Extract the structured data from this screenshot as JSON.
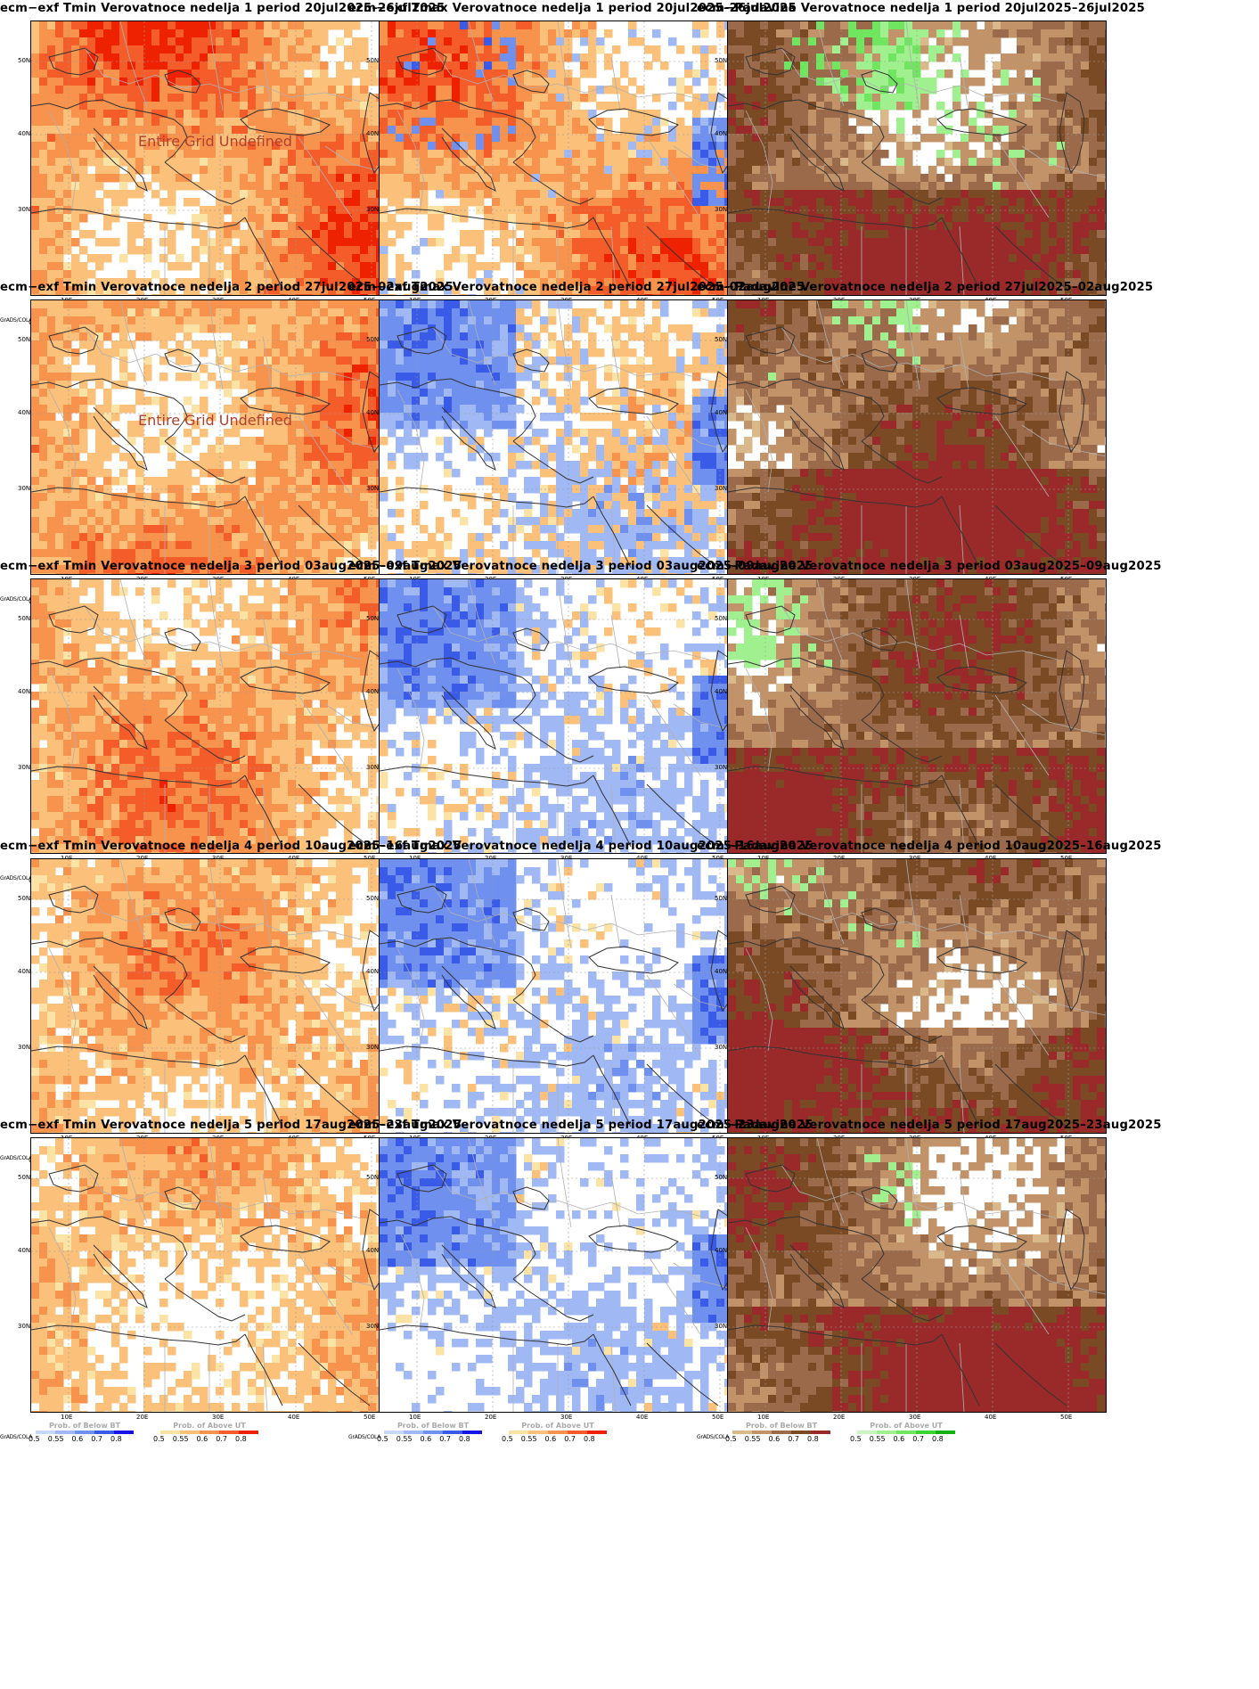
{
  "colorbars": {
    "tmin_below": {
      "title": "Prob. of Below BT",
      "labels": [
        "0.5",
        "0.55",
        "0.6",
        "0.7",
        "0.8"
      ],
      "colors": [
        "#c8d8f8",
        "#a0b8f4",
        "#6f90ee",
        "#3a5ae8",
        "#1414e6"
      ]
    },
    "tmin_above": {
      "title": "Prob. of Above UT",
      "labels": [
        "0.5",
        "0.55",
        "0.6",
        "0.7",
        "0.8"
      ],
      "colors": [
        "#fbe3a6",
        "#fbc07a",
        "#f8934e",
        "#f45c2a",
        "#ee2200"
      ]
    },
    "prec_below": {
      "title": "Prob. of Below BT",
      "labels": [
        "0.5",
        "0.55",
        "0.6",
        "0.7",
        "0.8"
      ],
      "colors": [
        "#d9b88a",
        "#c29368",
        "#9a6a4a",
        "#7a4a24",
        "#9a2a2a"
      ]
    },
    "prec_above": {
      "title": "Prob. of Above UT",
      "labels": [
        "0.5",
        "0.55",
        "0.6",
        "0.7",
        "0.8"
      ],
      "colors": [
        "#c8f8c0",
        "#a0f090",
        "#70e660",
        "#3cd42e",
        "#10b010"
      ]
    }
  },
  "grads_label": "GrADS/COLA",
  "ylabels": [
    "50N",
    "40N",
    "30N"
  ],
  "xlabels": [
    "10E",
    "20E",
    "30E",
    "40E",
    "50E"
  ],
  "rows": [
    {
      "period": "20jul2025–26jul2025",
      "week": "1"
    },
    {
      "period": "27jul2025–02aug2025",
      "week": "2"
    },
    {
      "period": "03aug2025–09aug2025",
      "week": "3"
    },
    {
      "period": "10aug2025–16aug2025",
      "week": "4"
    },
    {
      "period": "17aug2025–23aug2025",
      "week": "5"
    }
  ],
  "panels": [
    {
      "title": "ecm−exf Tmin Verovatnoce nedelja 1 period 20jul2025–26jul2025",
      "var": "tmin",
      "levels": {
        "hot": 0.85,
        "cold": 0.0
      },
      "watermark": "Entire Grid Undefined"
    },
    {
      "title": "ecm−exf Tmax Verovatnoce nedelja 1 period 20jul2025–26jul2025",
      "var": "tmax",
      "levels": {
        "hot": 0.75,
        "cold": 0.25
      }
    },
    {
      "title": "ecm−Padavine Verovatnoce nedelja 1 period 20jul2025–26jul2025",
      "var": "prec",
      "levels": {
        "dry": 0.8,
        "wet": 0.2
      }
    },
    {
      "title": "ecm−exf Tmin Verovatnoce nedelja 2 period 27jul2025–02aug2025",
      "var": "tmin",
      "levels": {
        "hot": 0.75,
        "cold": 0.0
      },
      "watermark": "Entire Grid Undefined"
    },
    {
      "title": "ecm−exf Tmax Verovatnoce nedelja 2 period 27jul2025–02aug2025",
      "var": "tmax",
      "levels": {
        "hot": 0.3,
        "cold": 0.3
      }
    },
    {
      "title": "ecm−Padavine Verovatnoce nedelja 2 period 27jul2025–02aug2025",
      "var": "prec",
      "levels": {
        "dry": 0.85,
        "wet": 0.04
      }
    },
    {
      "title": "ecm−exf Tmin Verovatnoce nedelja 3 period 03aug2025–09aug2025",
      "var": "tmin",
      "levels": {
        "hot": 0.65,
        "cold": 0.02
      }
    },
    {
      "title": "ecm−exf Tmax Verovatnoce nedelja 3 period 03aug2025–09aug2025",
      "var": "tmax",
      "levels": {
        "hot": 0.1,
        "cold": 0.3
      }
    },
    {
      "title": "ecm−Padavine Verovatnoce nedelja 3 period 03aug2025–09aug2025",
      "var": "prec",
      "levels": {
        "dry": 0.85,
        "wet": 0.03
      }
    },
    {
      "title": "ecm−exf Tmin Verovatnoce nedelja 4 period 10aug2025–16aug2025",
      "var": "tmin",
      "levels": {
        "hot": 0.55,
        "cold": 0.02
      }
    },
    {
      "title": "ecm−exf Tmax Verovatnoce nedelja 4 period 10aug2025–16aug2025",
      "var": "tmax",
      "levels": {
        "hot": 0.08,
        "cold": 0.3
      }
    },
    {
      "title": "ecm−Padavine Verovatnoce nedelja 4 period 10aug2025–16aug2025",
      "var": "prec",
      "levels": {
        "dry": 0.85,
        "wet": 0.03
      }
    },
    {
      "title": "ecm−exf Tmin Verovatnoce nedelja 5 period 17aug2025–23aug2025",
      "var": "tmin",
      "levels": {
        "hot": 0.5,
        "cold": 0.02
      }
    },
    {
      "title": "ecm−exf Tmax Verovatnoce nedelja 5 period 17aug2025–23aug2025",
      "var": "tmax",
      "levels": {
        "hot": 0.05,
        "cold": 0.3
      }
    },
    {
      "title": "ecm−Padavine Verovatnoce nedelja 5 period 17aug2025–23aug2025",
      "var": "prec",
      "levels": {
        "dry": 0.85,
        "wet": 0.03
      }
    }
  ]
}
